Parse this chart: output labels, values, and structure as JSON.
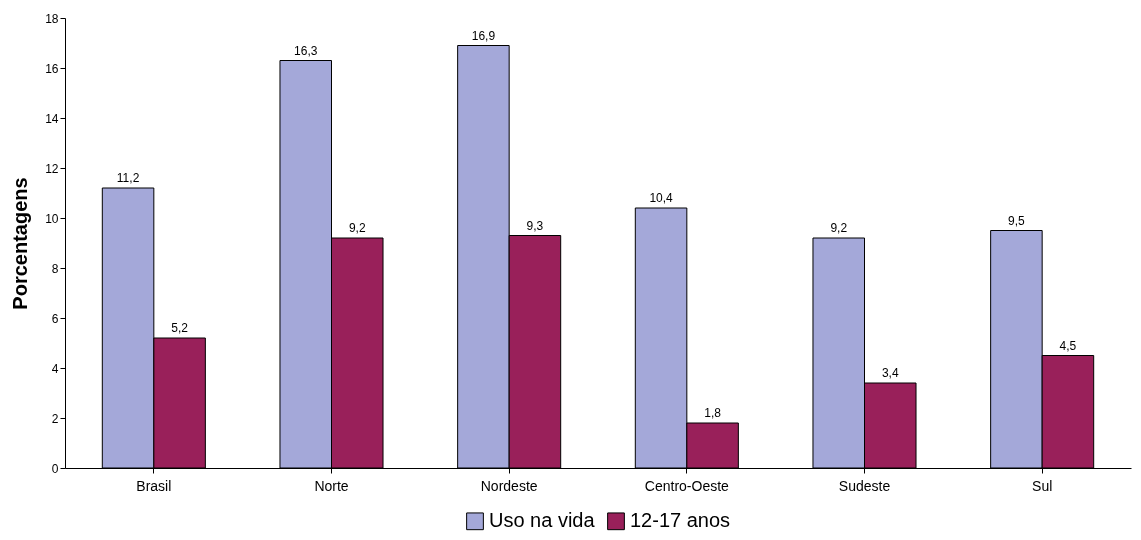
{
  "chart_data": {
    "type": "bar",
    "ylabel": "Porcentagens",
    "categories": [
      "Brasil",
      "Norte",
      "Nordeste",
      "Centro-Oeste",
      "Sudeste",
      "Sul"
    ],
    "series": [
      {
        "name": "Uso na vida",
        "color": "#a4a8d9",
        "values": [
          11.2,
          16.3,
          16.9,
          10.4,
          9.2,
          9.5
        ],
        "value_labels": [
          "11,2",
          "16,3",
          "16,9",
          "10,4",
          "9,2",
          "9,5"
        ]
      },
      {
        "name": "12-17 anos",
        "color": "#99205a",
        "values": [
          5.2,
          9.2,
          9.3,
          1.8,
          3.4,
          4.5
        ],
        "value_labels": [
          "5,2",
          "9,2",
          "9,3",
          "1,8",
          "3,4",
          "4,5"
        ]
      }
    ],
    "ylim": [
      0,
      18
    ],
    "yticks": [
      0,
      2,
      4,
      6,
      8,
      10,
      12,
      14,
      16,
      18
    ],
    "grid": false,
    "legend": "bottom"
  }
}
